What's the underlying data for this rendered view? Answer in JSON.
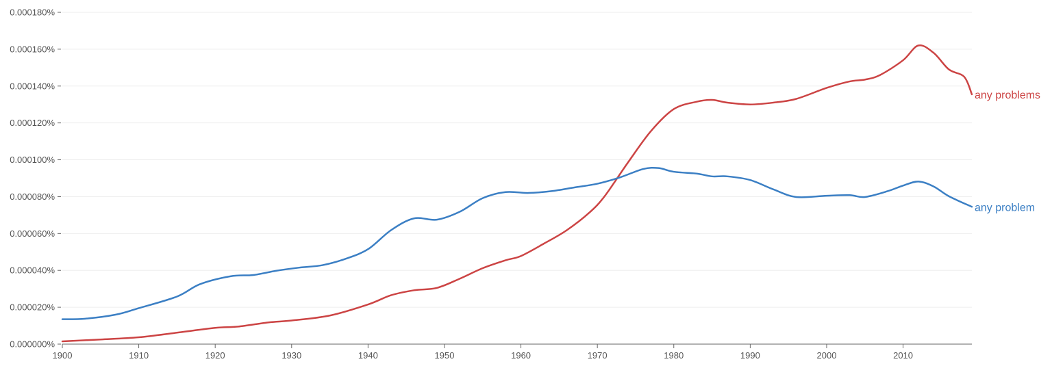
{
  "chart_data": {
    "type": "line",
    "title": "",
    "xlabel": "",
    "ylabel": "",
    "xlim": [
      1900,
      2019
    ],
    "ylim": [
      0,
      0.00018
    ],
    "grid": true,
    "y_ticks": [
      0,
      2e-05,
      4e-05,
      6e-05,
      8e-05,
      0.0001,
      0.00012,
      0.00014,
      0.00016,
      0.00018
    ],
    "y_tick_labels": [
      "0.000000%",
      "0.000020%",
      "0.000040%",
      "0.000060%",
      "0.000080%",
      "0.000100%",
      "0.000120%",
      "0.000140%",
      "0.000160%",
      "0.000180%"
    ],
    "x_ticks": [
      1900,
      1910,
      1920,
      1930,
      1940,
      1950,
      1960,
      1970,
      1980,
      1990,
      2000,
      2010
    ],
    "x_tick_labels": [
      "1900",
      "1910",
      "1920",
      "1930",
      "1940",
      "1950",
      "1960",
      "1970",
      "1980",
      "1990",
      "2000",
      "2010"
    ],
    "legend_placement": "inline-right",
    "series": [
      {
        "name": "any problems",
        "color": "#cc4444",
        "x": [
          1900,
          1905,
          1910,
          1915,
          1920,
          1923,
          1927,
          1930,
          1935,
          1940,
          1943,
          1946,
          1949,
          1952,
          1955,
          1958,
          1960,
          1963,
          1966,
          1969,
          1971,
          1974,
          1977,
          1980,
          1983,
          1985,
          1987,
          1990,
          1993,
          1996,
          2000,
          2003,
          2005,
          2007,
          2010,
          2012,
          2014,
          2016,
          2018,
          2019
        ],
        "values": [
          1.5e-06,
          2.5e-06,
          3.7e-06,
          6.2e-06,
          8.8e-06,
          9.5e-06,
          1.18e-05,
          1.28e-05,
          1.55e-05,
          2.15e-05,
          2.65e-05,
          2.92e-05,
          3.05e-05,
          3.55e-05,
          4.12e-05,
          4.55e-05,
          4.78e-05,
          5.45e-05,
          6.18e-05,
          7.15e-05,
          8.05e-05,
          9.85e-05,
          0.0001155,
          0.0001275,
          0.0001315,
          0.0001325,
          0.000131,
          0.00013,
          0.000131,
          0.000133,
          0.000139,
          0.0001425,
          0.0001435,
          0.000146,
          0.000154,
          0.000162,
          0.000158,
          0.000149,
          0.000145,
          0.0001355
        ]
      },
      {
        "name": "any problem",
        "color": "#3b7fc4",
        "x": [
          1900,
          1903,
          1907,
          1910,
          1915,
          1918,
          1922,
          1925,
          1928,
          1931,
          1934,
          1937,
          1940,
          1943,
          1946,
          1949,
          1952,
          1955,
          1958,
          1961,
          1964,
          1967,
          1970,
          1973,
          1976,
          1978,
          1980,
          1983,
          1985,
          1987,
          1990,
          1993,
          1996,
          2000,
          2003,
          2005,
          2008,
          2010,
          2012,
          2014,
          2016,
          2019
        ],
        "values": [
          1.35e-05,
          1.38e-05,
          1.6e-05,
          1.95e-05,
          2.58e-05,
          3.25e-05,
          3.68e-05,
          3.75e-05,
          3.98e-05,
          4.15e-05,
          4.28e-05,
          4.62e-05,
          5.15e-05,
          6.18e-05,
          6.82e-05,
          6.75e-05,
          7.18e-05,
          7.92e-05,
          8.25e-05,
          8.2e-05,
          8.3e-05,
          8.5e-05,
          8.7e-05,
          9.05e-05,
          9.5e-05,
          9.55e-05,
          9.35e-05,
          9.25e-05,
          9.1e-05,
          9.1e-05,
          8.9e-05,
          8.4e-05,
          7.98e-05,
          8.05e-05,
          8.08e-05,
          7.98e-05,
          8.3e-05,
          8.6e-05,
          8.82e-05,
          8.55e-05,
          8.02e-05,
          7.45e-05
        ]
      }
    ]
  }
}
